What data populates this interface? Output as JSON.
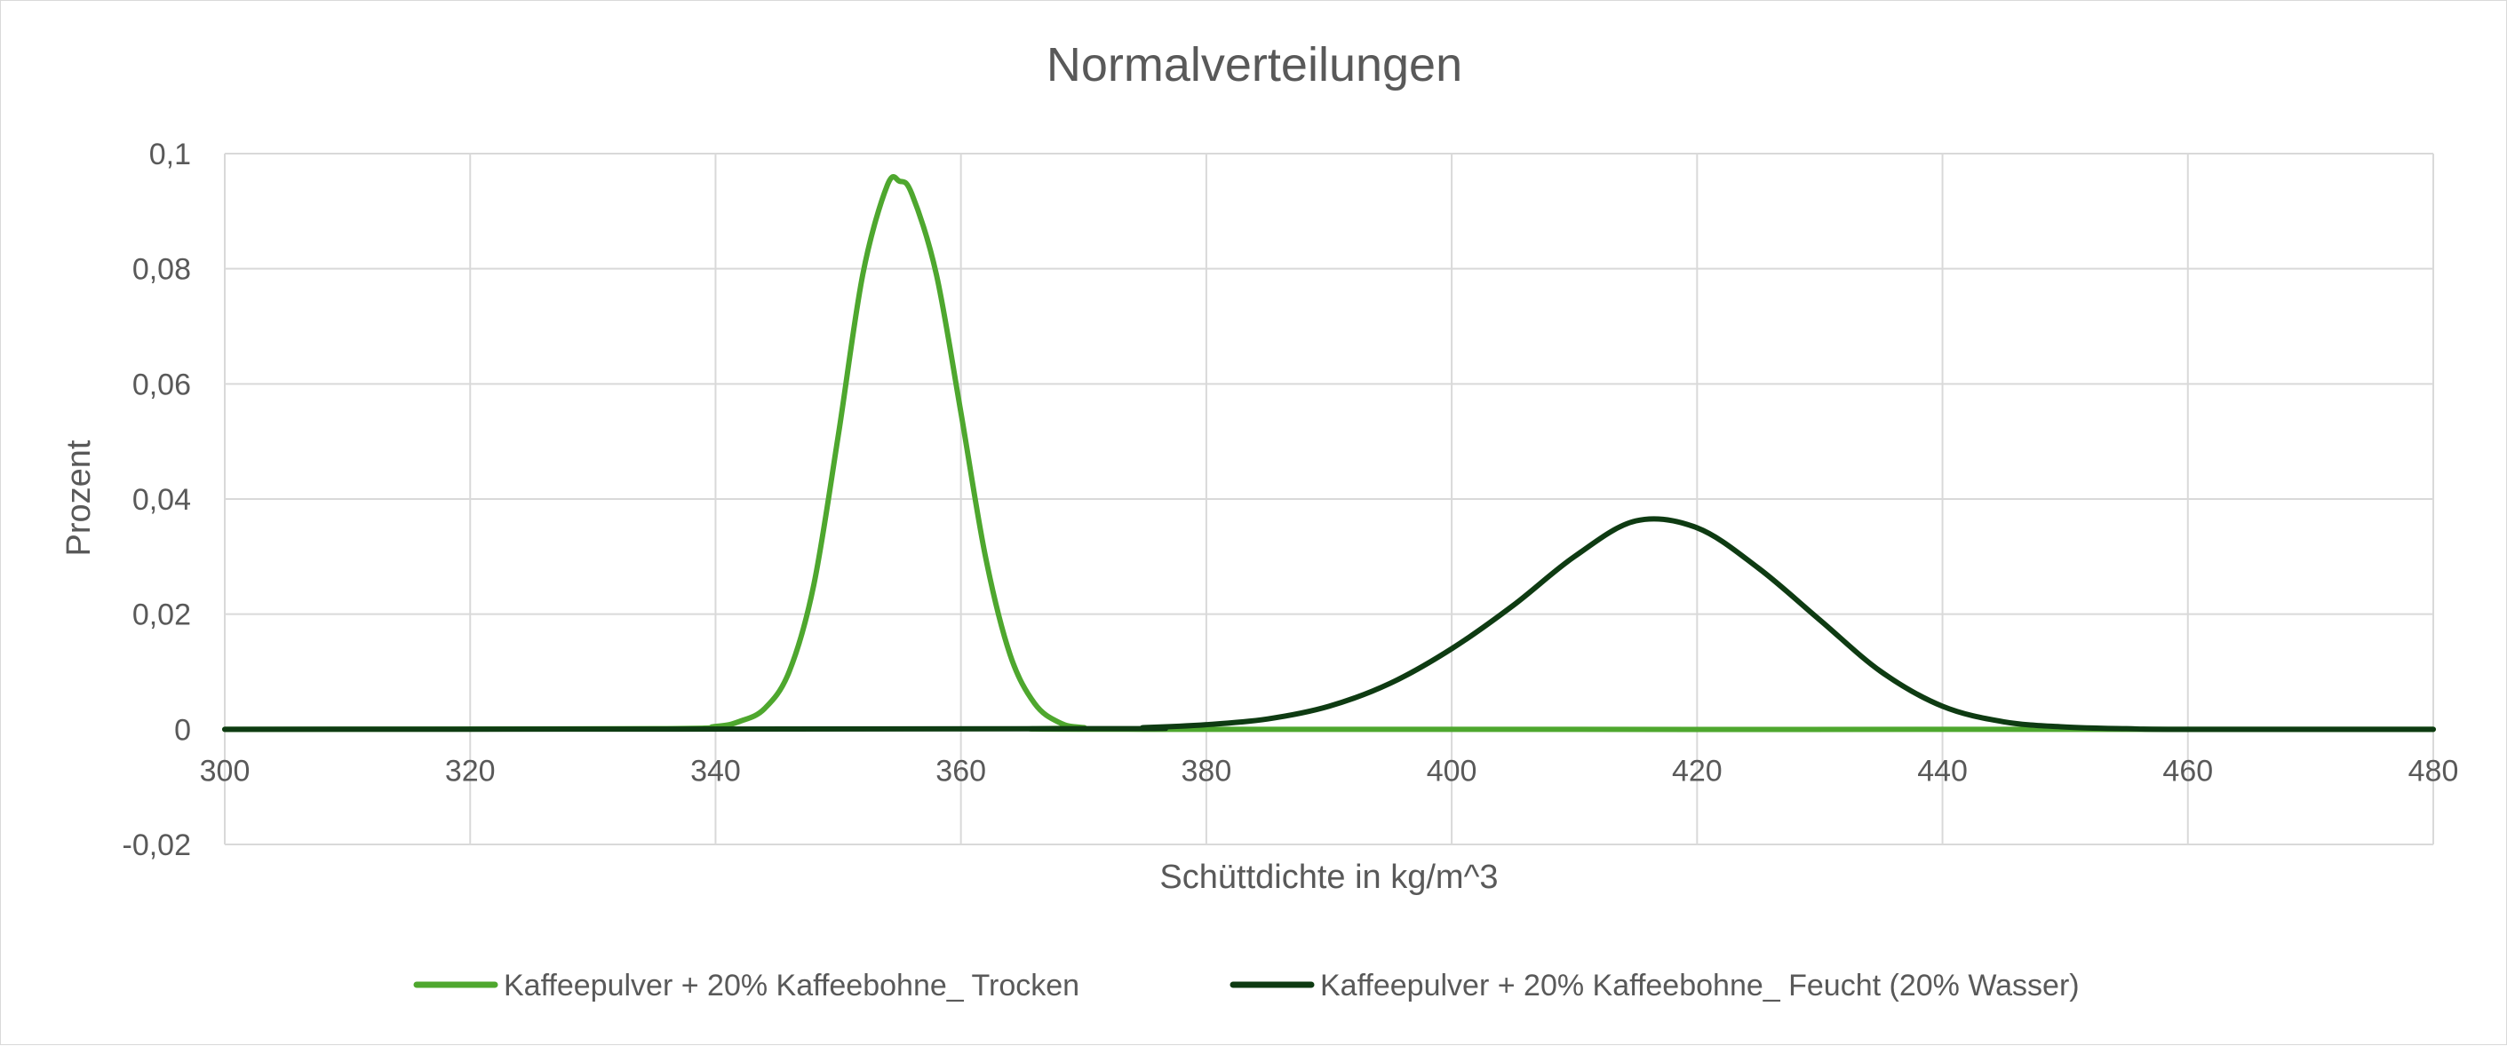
{
  "chart_data": {
    "type": "line",
    "title": "Normalverteilungen",
    "xlabel": "Schüttdichte in kg/m^3",
    "ylabel": "Prozent",
    "xlim": [
      300,
      480
    ],
    "ylim": [
      -0.02,
      0.1
    ],
    "x_ticks": [
      300,
      320,
      340,
      360,
      380,
      400,
      420,
      440,
      460,
      480
    ],
    "x_tick_labels": [
      "300",
      "320",
      "340",
      "360",
      "380",
      "400",
      "420",
      "440",
      "460",
      "480"
    ],
    "y_ticks": [
      -0.02,
      0,
      0.02,
      0.04,
      0.06,
      0.08,
      0.1
    ],
    "y_tick_labels": [
      "-0,02",
      "0",
      "0,02",
      "0,04",
      "0,06",
      "0,08",
      "0,1"
    ],
    "grid": true,
    "legend_position": "bottom",
    "series": [
      {
        "name": "Kaffeepulver + 20% Kaffeebohne_ Trocken",
        "color": "#4ea72e",
        "x": [
          300,
          335,
          340,
          342,
          344,
          346,
          348,
          350,
          352,
          354,
          355,
          356,
          358,
          360,
          362,
          364,
          366,
          368,
          370,
          375,
          480
        ],
        "y": [
          0,
          0.0001,
          0.0005,
          0.0014,
          0.0036,
          0.01,
          0.025,
          0.051,
          0.079,
          0.0945,
          0.0952,
          0.093,
          0.079,
          0.055,
          0.03,
          0.013,
          0.0045,
          0.0012,
          0.0003,
          0,
          0
        ]
      },
      {
        "name": "Kaffeepulver + 20% Kaffeebohne_ Feucht (20% Wasser)",
        "color": "#0e3b12",
        "x": [
          300,
          370,
          375,
          380,
          385,
          390,
          395,
          400,
          405,
          410,
          415,
          420,
          425,
          430,
          435,
          440,
          445,
          450,
          455,
          460,
          480
        ],
        "y": [
          0,
          0.0001,
          0.0003,
          0.0008,
          0.0018,
          0.004,
          0.008,
          0.014,
          0.0215,
          0.03,
          0.0362,
          0.035,
          0.028,
          0.019,
          0.01,
          0.004,
          0.0013,
          0.0004,
          0.0001,
          0,
          0
        ]
      }
    ]
  }
}
